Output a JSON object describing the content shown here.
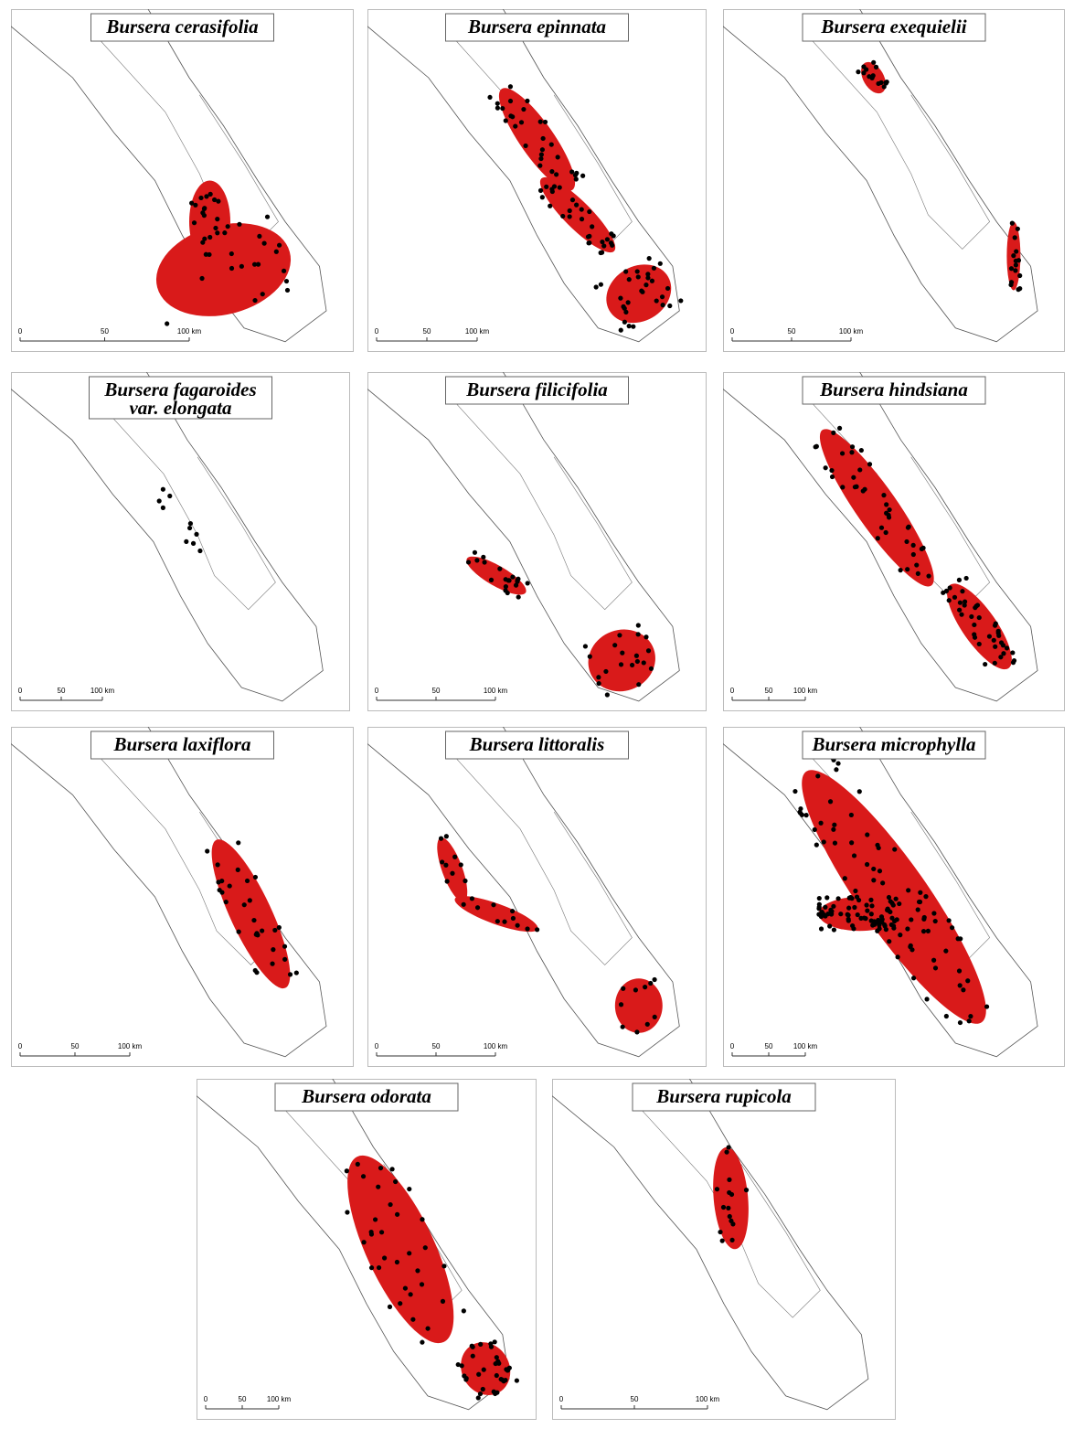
{
  "panels": [
    {
      "title": "Bursera cerasifolia",
      "scale": [
        "0",
        "50",
        "100 km"
      ]
    },
    {
      "title": "Bursera epinnata",
      "scale": [
        "0",
        "50",
        "100 km"
      ]
    },
    {
      "title": "Bursera exequielii",
      "scale": [
        "0",
        "50",
        "100 km"
      ]
    },
    {
      "title": "Bursera fagaroides",
      "subtitle": "var. elongata",
      "scale": [
        "0",
        "50",
        "100 km"
      ]
    },
    {
      "title": "Bursera filicifolia",
      "scale": [
        "0",
        "50",
        "100 km"
      ]
    },
    {
      "title": "Bursera hindsiana",
      "scale": [
        "0",
        "50",
        "100 km"
      ]
    },
    {
      "title": "Bursera laxiflora",
      "scale": [
        "0",
        "50",
        "100 km"
      ]
    },
    {
      "title": "Bursera littoralis",
      "scale": [
        "0",
        "50",
        "100 km"
      ]
    },
    {
      "title": "Bursera microphylla",
      "scale": [
        "0",
        "50",
        "100 km"
      ]
    },
    {
      "title": "Bursera odorata",
      "scale": [
        "0",
        "50",
        "100 km"
      ]
    },
    {
      "title": "Bursera rupicola",
      "scale": [
        "0",
        "50",
        "100 km"
      ]
    }
  ]
}
